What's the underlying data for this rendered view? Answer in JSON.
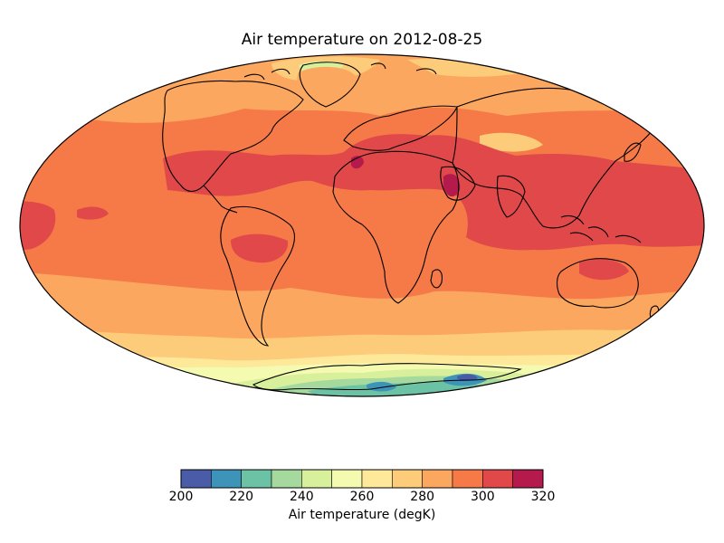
{
  "title": "Air temperature on 2012-08-25",
  "projection": "mollweide",
  "colorbar": {
    "label": "Air temperature (degK)",
    "min": 200,
    "max": 320,
    "step": 10,
    "tick_labels": [
      "200",
      "220",
      "240",
      "260",
      "280",
      "300",
      "320"
    ],
    "colors": [
      "#4a5ca8",
      "#3d93b8",
      "#6cc2a4",
      "#a5d99e",
      "#d8ef9c",
      "#f4fbb0",
      "#fee89a",
      "#fdcc7a",
      "#fca75f",
      "#f57a48",
      "#e0484a",
      "#b51a4c"
    ]
  }
}
